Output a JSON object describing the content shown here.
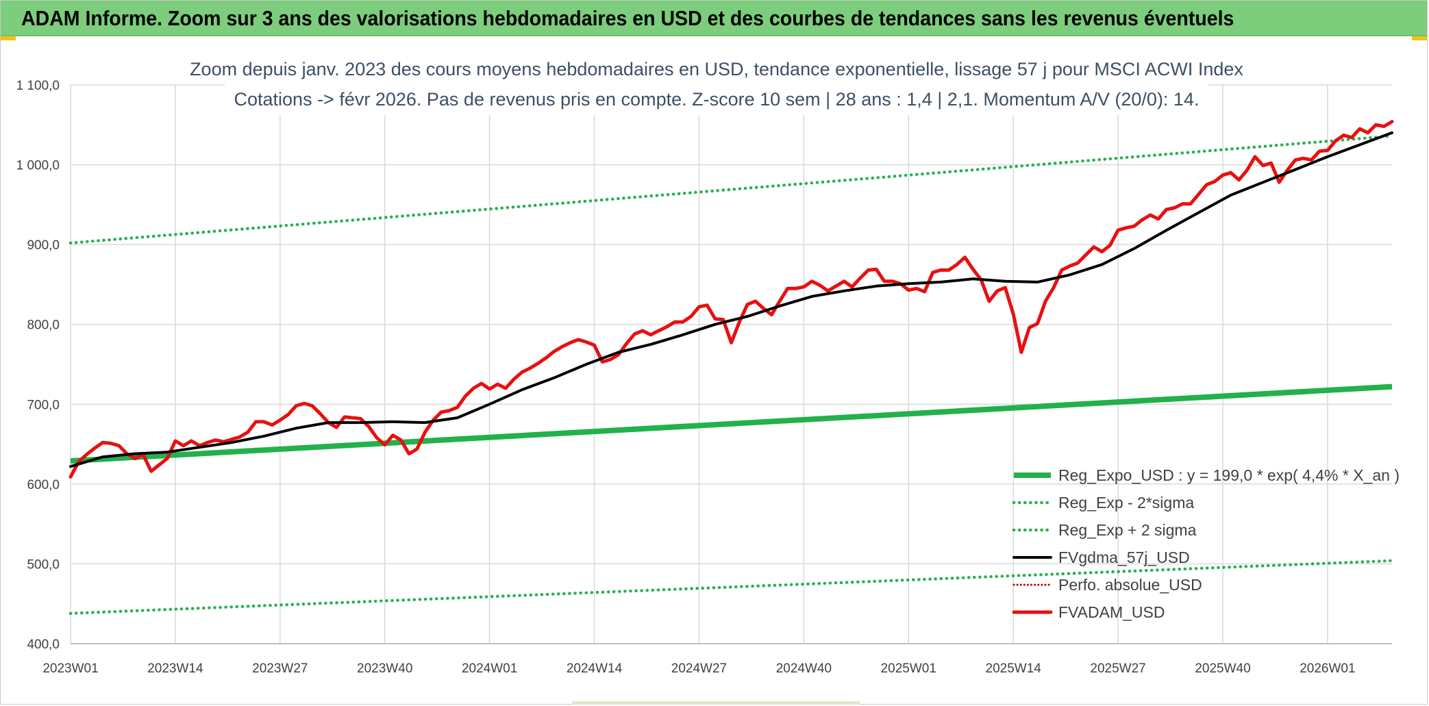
{
  "banner": {
    "title": "ADAM Informe. Zoom sur 3 ans des valorisations hebdomadaires en USD et des courbes de tendances sans les revenus éventuels"
  },
  "chart_data": {
    "type": "line",
    "title_line1": "Zoom depuis janv. 2023 des cours moyens hebdomadaires en USD, tendance exponentielle, lissage 57 j pour MSCI ACWI Index",
    "title_line2": "Cotations -> févr 2026. Pas de revenus pris en compte. Z-score 10 sem | 28 ans : 1,4 | 2,1. Momentum A/V (20/0): 14.",
    "ylim": [
      400,
      1100
    ],
    "y_ticks": [
      "400,0",
      "500,0",
      "600,0",
      "700,0",
      "800,0",
      "900,0",
      "1 000,0",
      "1 100,0"
    ],
    "x_ticks": [
      "2023W01",
      "2023W14",
      "2023W27",
      "2023W40",
      "2024W01",
      "2024W14",
      "2024W27",
      "2024W40",
      "2025W01",
      "2025W14",
      "2025W27",
      "2025W40",
      "2026W01"
    ],
    "x_range_weeks": [
      0,
      164
    ],
    "grid": true,
    "legend_position": "bottom-right",
    "colors": {
      "reg_expo": "#22b14c",
      "sigma": "#22b14c",
      "fvgdma": "#000000",
      "perfo": "#c00000",
      "fvadam": "#e81010",
      "grid": "#d9d9d9",
      "title": "#3d4f66"
    },
    "series": [
      {
        "name": "Reg_Expo_USD : y = 199,0 * exp( 4,4% *  X_an )",
        "style": "thick-solid",
        "x": [
          0,
          164
        ],
        "values": [
          629,
          722
        ]
      },
      {
        "name": "Reg_Exp - 2*sigma",
        "style": "dotted",
        "x": [
          0,
          164
        ],
        "values": [
          438,
          504
        ]
      },
      {
        "name": "Reg_Exp + 2 sigma",
        "style": "dotted",
        "x": [
          0,
          164
        ],
        "values": [
          902,
          1036
        ]
      },
      {
        "name": "FVgdma_57j_USD",
        "style": "solid",
        "x": [
          0,
          4,
          8,
          12,
          16,
          20,
          24,
          28,
          32,
          36,
          40,
          44,
          48,
          52,
          56,
          60,
          64,
          68,
          72,
          76,
          80,
          84,
          88,
          92,
          96,
          100,
          104,
          108,
          112,
          116,
          120,
          124,
          128,
          132,
          136,
          140,
          144,
          148,
          152,
          156,
          160,
          164
        ],
        "values": [
          622,
          634,
          638,
          640,
          646,
          652,
          660,
          670,
          677,
          677,
          678,
          677,
          683,
          700,
          718,
          733,
          750,
          765,
          775,
          787,
          800,
          810,
          823,
          835,
          842,
          848,
          851,
          853,
          857,
          854,
          853,
          862,
          875,
          895,
          918,
          940,
          962,
          978,
          994,
          1010,
          1025,
          1040
        ]
      },
      {
        "name": "Perfo. absolue_USD",
        "style": "dotted",
        "x": [],
        "values": []
      },
      {
        "name": "FVADAM_USD",
        "style": "thick-solid",
        "x": [
          0,
          1,
          2,
          3,
          4,
          5,
          6,
          7,
          8,
          9,
          10,
          11,
          12,
          13,
          14,
          15,
          16,
          17,
          18,
          19,
          20,
          21,
          22,
          23,
          24,
          25,
          26,
          27,
          28,
          29,
          30,
          31,
          32,
          33,
          34,
          35,
          36,
          37,
          38,
          39,
          40,
          41,
          42,
          43,
          44,
          45,
          46,
          47,
          48,
          49,
          50,
          51,
          52,
          53,
          54,
          55,
          56,
          57,
          58,
          59,
          60,
          61,
          62,
          63,
          64,
          65,
          66,
          67,
          68,
          69,
          70,
          71,
          72,
          73,
          74,
          75,
          76,
          77,
          78,
          79,
          80,
          81,
          82,
          83,
          84,
          85,
          86,
          87,
          88,
          89,
          90,
          91,
          92,
          93,
          94,
          95,
          96,
          97,
          98,
          99,
          100,
          101,
          102,
          103,
          104,
          105,
          106,
          107,
          108,
          109,
          110,
          111,
          112,
          113,
          114,
          115,
          116,
          117,
          118,
          119,
          120,
          121,
          122,
          123,
          124,
          125,
          126,
          127,
          128,
          129,
          130,
          131,
          132,
          133,
          134,
          135,
          136,
          137,
          138,
          139,
          140,
          141,
          142,
          143,
          144,
          145,
          146,
          147,
          148,
          149,
          150,
          151,
          152,
          153,
          154,
          155,
          156,
          157,
          158,
          159,
          160,
          161,
          162,
          163,
          164
        ],
        "values": [
          609,
          628,
          637,
          645,
          652,
          651,
          648,
          638,
          632,
          637,
          616,
          624,
          632,
          654,
          648,
          654,
          648,
          652,
          655,
          653,
          656,
          659,
          665,
          678,
          678,
          674,
          680,
          687,
          698,
          701,
          698,
          688,
          677,
          671,
          684,
          683,
          682,
          672,
          658,
          649,
          661,
          655,
          638,
          644,
          665,
          680,
          690,
          692,
          696,
          710,
          720,
          726,
          719,
          725,
          720,
          731,
          740,
          745,
          751,
          758,
          766,
          772,
          777,
          781,
          778,
          774,
          753,
          756,
          762,
          776,
          788,
          792,
          787,
          792,
          797,
          803,
          803,
          810,
          822,
          824,
          807,
          806,
          777,
          803,
          825,
          829,
          820,
          812,
          829,
          845,
          845,
          847,
          854,
          849,
          842,
          848,
          854,
          847,
          858,
          868,
          869,
          854,
          854,
          851,
          843,
          845,
          841,
          865,
          868,
          868,
          875,
          884,
          869,
          856,
          829,
          842,
          846,
          813,
          765,
          796,
          801,
          829,
          846,
          868,
          873,
          877,
          887,
          897,
          891,
          899,
          918,
          921,
          923,
          931,
          937,
          932,
          944,
          946,
          951,
          951,
          963,
          975,
          979,
          987,
          990,
          981,
          993,
          1010,
          999,
          1002,
          978,
          993,
          1006,
          1008,
          1006,
          1017,
          1018,
          1030,
          1037,
          1034,
          1045,
          1040,
          1050,
          1048,
          1054
        ]
      }
    ]
  }
}
